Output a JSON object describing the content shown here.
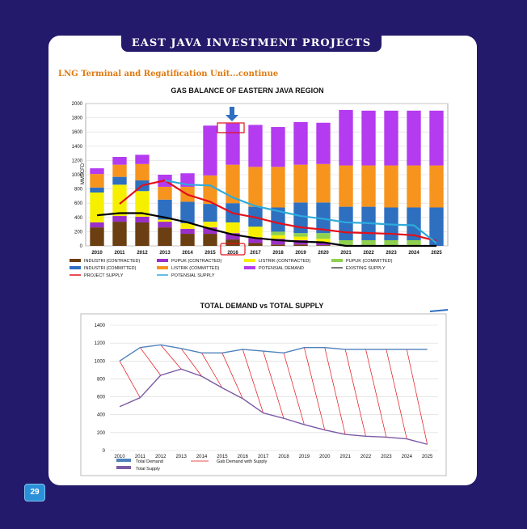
{
  "page": {
    "banner": "EAST JAVA INVESTMENT PROJECTS",
    "subtitle": "LNG Terminal and Regatification Unit...continue",
    "page_number": "29"
  },
  "chart_data": [
    {
      "type": "bar",
      "title": "GAS BALANCE OF EASTERN JAVA REGION",
      "ylabel": "MMSCFD",
      "ylim": [
        0,
        2000
      ],
      "yticks": [
        0,
        200,
        400,
        600,
        800,
        1000,
        1200,
        1400,
        1600,
        1800,
        2000
      ],
      "categories": [
        "2010",
        "2011",
        "2012",
        "2013",
        "2014",
        "2015",
        "2016",
        "2017",
        "2018",
        "2019",
        "2020",
        "2021",
        "2022",
        "2023",
        "2024",
        "2025"
      ],
      "highlight_category": "2016",
      "stacked_series": [
        {
          "name": "INDUSTRI (CONTRACTED)",
          "color": "#6b3f12",
          "values": [
            260,
            340,
            330,
            260,
            170,
            170,
            90,
            40,
            20,
            20,
            10,
            0,
            0,
            0,
            0,
            0
          ]
        },
        {
          "name": "PUPUK (CONTRACTED)",
          "color": "#9b2fc9",
          "values": [
            70,
            80,
            80,
            80,
            70,
            90,
            90,
            80,
            80,
            60,
            40,
            0,
            0,
            0,
            0,
            0
          ]
        },
        {
          "name": "LISTRIK (CONTRACTED)",
          "color": "#f6f000",
          "values": [
            420,
            440,
            360,
            30,
            80,
            80,
            150,
            150,
            50,
            50,
            50,
            0,
            0,
            0,
            0,
            0
          ]
        },
        {
          "name": "PUPUK (COMMITTED)",
          "color": "#8fd14f",
          "values": [
            0,
            0,
            0,
            0,
            0,
            0,
            0,
            0,
            50,
            50,
            80,
            80,
            80,
            80,
            80,
            0
          ]
        },
        {
          "name": "INDUSTRI (COMMITTED)",
          "color": "#2e6fc0",
          "values": [
            70,
            110,
            150,
            280,
            300,
            250,
            270,
            280,
            340,
            430,
            430,
            470,
            470,
            460,
            460,
            540
          ]
        },
        {
          "name": "LISTRIK (COMMITTED)",
          "color": "#f7941d",
          "values": [
            190,
            170,
            230,
            180,
            210,
            400,
            540,
            560,
            570,
            530,
            540,
            580,
            580,
            590,
            590,
            590
          ]
        },
        {
          "name": "POTENSIAL DEMAND",
          "color": "#b43bf0",
          "values": [
            80,
            110,
            130,
            170,
            190,
            700,
            580,
            590,
            560,
            600,
            580,
            780,
            770,
            770,
            770,
            770
          ]
        }
      ],
      "line_series": [
        {
          "name": "EXISTING SUPPLY",
          "color": "#000000",
          "values": [
            430,
            460,
            460,
            400,
            330,
            240,
            160,
            110,
            80,
            60,
            50,
            0,
            0,
            0,
            0,
            0
          ]
        },
        {
          "name": "PROJECT SUPPLY",
          "color": "#e3101a",
          "values": [
            null,
            590,
            850,
            920,
            720,
            620,
            460,
            400,
            320,
            260,
            230,
            190,
            180,
            170,
            150,
            70
          ]
        },
        {
          "name": "POTENSIAL SUPPLY",
          "color": "#2eaadc",
          "values": [
            null,
            null,
            null,
            920,
            860,
            850,
            680,
            560,
            490,
            420,
            380,
            330,
            320,
            300,
            290,
            40
          ]
        }
      ],
      "legend": [
        {
          "label": "INDUSTRI (CONTRACTED)",
          "color": "#6b3f12",
          "kind": "bar"
        },
        {
          "label": "PUPUK (CONTRACTED)",
          "color": "#9b2fc9",
          "kind": "bar"
        },
        {
          "label": "LISTRIK (CONTRACTED)",
          "color": "#f6f000",
          "kind": "bar"
        },
        {
          "label": "PUPUK (COMMITTED)",
          "color": "#8fd14f",
          "kind": "bar"
        },
        {
          "label": "INDUSTRI (COMMITTED)",
          "color": "#2e6fc0",
          "kind": "bar"
        },
        {
          "label": "LISTRIK (COMMITTED)",
          "color": "#f7941d",
          "kind": "bar"
        },
        {
          "label": "POTENSIAL DEMAND",
          "color": "#b43bf0",
          "kind": "bar"
        },
        {
          "label": "EXISTING SUPPLY",
          "color": "#4a4a4a",
          "kind": "line"
        },
        {
          "label": "PROJECT SUPPLY",
          "color": "#e3101a",
          "kind": "line"
        },
        {
          "label": "POTENSIAL SUPPLY",
          "color": "#2eaadc",
          "kind": "line"
        }
      ]
    },
    {
      "type": "line",
      "title": "TOTAL DEMAND vs TOTAL SUPPLY",
      "ylim": [
        0,
        1400
      ],
      "yticks": [
        0,
        200,
        400,
        600,
        800,
        1000,
        1200,
        1400
      ],
      "categories": [
        "2010",
        "2011",
        "2012",
        "2013",
        "2014",
        "2015",
        "2016",
        "2017",
        "2018",
        "2019",
        "2020",
        "2021",
        "2022",
        "2023",
        "2024",
        "2025"
      ],
      "grid": true,
      "series": [
        {
          "name": "Total Demand",
          "color": "#4f81bd",
          "values": [
            1000,
            1150,
            1180,
            1140,
            1090,
            1090,
            1130,
            1110,
            1090,
            1150,
            1150,
            1130,
            1130,
            1130,
            1130,
            1130
          ]
        },
        {
          "name": "Total Supply",
          "color": "#7b5aa6",
          "values": [
            490,
            590,
            840,
            910,
            830,
            700,
            580,
            420,
            360,
            290,
            230,
            180,
            160,
            150,
            130,
            70
          ]
        }
      ],
      "gap_series": {
        "name": "Gab Demand  with Supply",
        "color": "#e3101a"
      }
    }
  ]
}
